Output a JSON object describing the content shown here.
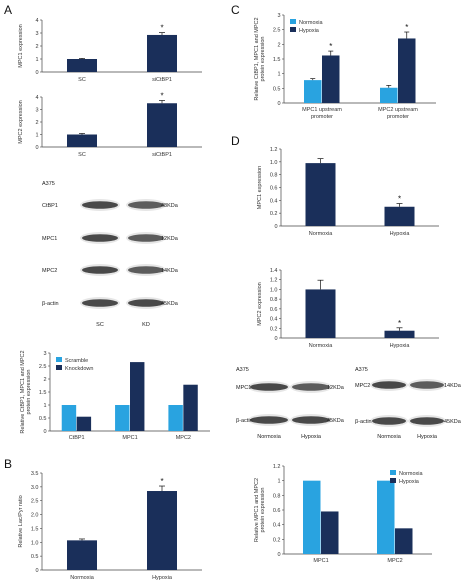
{
  "panels": {
    "A": "A",
    "B": "B",
    "C": "C",
    "D": "D"
  },
  "chart_data": [
    {
      "id": "A1",
      "type": "bar",
      "categories": [
        "SC",
        "siCtBP1"
      ],
      "values": [
        1.0,
        2.85
      ],
      "errors": [
        0.05,
        0.18
      ],
      "significance": [
        "",
        "*"
      ],
      "ylabel": "MPC1 expression",
      "ylim": [
        0,
        4
      ],
      "yticks": [
        "0",
        "1",
        "2",
        "3",
        "4"
      ],
      "color": "#1a2f5a",
      "grid": false
    },
    {
      "id": "A2",
      "type": "bar",
      "categories": [
        "SC",
        "siCtBP1"
      ],
      "values": [
        1.0,
        3.5
      ],
      "errors": [
        0.08,
        0.22
      ],
      "significance": [
        "",
        "*"
      ],
      "ylabel": "MPC2 expression",
      "ylim": [
        0,
        4
      ],
      "yticks": [
        "0",
        "1",
        "2",
        "3",
        "4"
      ],
      "color": "#1a2f5a",
      "grid": false
    },
    {
      "id": "A3",
      "type": "bar",
      "categories": [
        "CtBP1",
        "MPC1",
        "MPC2"
      ],
      "series": [
        {
          "name": "Scramble",
          "values": [
            1.0,
            1.0,
            1.0
          ],
          "color": "#29a3e0"
        },
        {
          "name": "Knockdown",
          "values": [
            0.55,
            2.65,
            1.78
          ],
          "color": "#1a2f5a"
        }
      ],
      "ylabel": "Relative CtBP1, MPC1 and MPC2 protein expression",
      "ylim": [
        0,
        3
      ],
      "yticks": [
        "0",
        "0.5",
        "1",
        "1.5",
        "2",
        "2.5",
        "3"
      ],
      "legend": "top-left",
      "grid": false
    },
    {
      "id": "B",
      "type": "bar",
      "categories": [
        "Normoxia",
        "Hypoxia"
      ],
      "values": [
        1.07,
        2.85
      ],
      "errors": [
        0.05,
        0.18
      ],
      "significance": [
        "",
        "*"
      ],
      "ylabel": "Relative Lac/Pyr ratio",
      "ylim": [
        0,
        3.5
      ],
      "yticks": [
        "0",
        "0.5",
        "1.0",
        "1.5",
        "2.0",
        "2.5",
        "3.0",
        "3.5"
      ],
      "color": "#1a2f5a",
      "grid": false
    },
    {
      "id": "C",
      "type": "bar",
      "categories": [
        "MPC1 upstream promoter",
        "MPC2 upstream promoter"
      ],
      "series": [
        {
          "name": "Normoxia",
          "values": [
            0.78,
            0.52
          ],
          "errors": [
            0.05,
            0.08
          ],
          "color": "#29a3e0"
        },
        {
          "name": "Hypoxia",
          "values": [
            1.62,
            2.2
          ],
          "errors": [
            0.15,
            0.22
          ],
          "color": "#1a2f5a"
        }
      ],
      "significance": [
        "*",
        "*"
      ],
      "ylabel": "Relative CtBP1, MPC1 and MPC2 protein expression",
      "ylim": [
        0,
        3
      ],
      "yticks": [
        "0",
        "0.5",
        "1",
        "1.5",
        "2",
        "2.5",
        "3"
      ],
      "legend": "top-left",
      "grid": false
    },
    {
      "id": "D1",
      "type": "bar",
      "categories": [
        "Normoxia",
        "Hypoxia"
      ],
      "values": [
        0.98,
        0.3
      ],
      "errors": [
        0.07,
        0.05
      ],
      "significance": [
        "",
        "*"
      ],
      "ylabel": "MPC1 expression",
      "ylim": [
        0,
        1.2
      ],
      "yticks": [
        "0",
        "0.2",
        "0.4",
        "0.6",
        "0.8",
        "1.0",
        "1.2"
      ],
      "color": "#1a2f5a",
      "grid": false
    },
    {
      "id": "D2",
      "type": "bar",
      "categories": [
        "Normoxia",
        "Hypoxia"
      ],
      "values": [
        1.0,
        0.15
      ],
      "errors": [
        0.19,
        0.06
      ],
      "significance": [
        "",
        "*"
      ],
      "ylabel": "MPC2 expression",
      "ylim": [
        0,
        1.4
      ],
      "yticks": [
        "0",
        "0.2",
        "0.4",
        "0.6",
        "0.8",
        "1.0",
        "1.2",
        "1.4"
      ],
      "color": "#1a2f5a",
      "grid": false
    },
    {
      "id": "D3",
      "type": "bar",
      "categories": [
        "MPC1",
        "MPC2"
      ],
      "series": [
        {
          "name": "Normoxia",
          "values": [
            1.0,
            1.0
          ],
          "color": "#29a3e0"
        },
        {
          "name": "Hypoxia",
          "values": [
            0.58,
            0.35
          ],
          "color": "#1a2f5a"
        }
      ],
      "ylabel": "Relative MPC1 and MPC2 protein expression",
      "ylim": [
        0,
        1.2
      ],
      "yticks": [
        "0",
        "0.2",
        "0.4",
        "0.6",
        "0.8",
        "1",
        "1.2"
      ],
      "legend": "top-right",
      "grid": false
    }
  ],
  "blots": {
    "A": {
      "cell": "A375",
      "rows": [
        {
          "label": "CtBP1",
          "size": "48KDa"
        },
        {
          "label": "MPC1",
          "size": "12KDa"
        },
        {
          "label": "MPC2",
          "size": "14KDa"
        },
        {
          "label": "β-actin",
          "size": "45KDa"
        }
      ],
      "lanes": [
        "SC",
        "KD"
      ]
    },
    "D1": {
      "cell": "A375",
      "rows": [
        {
          "label": "MPC1",
          "size": "12KDa"
        },
        {
          "label": "β-actin",
          "size": "45KDa"
        }
      ],
      "lanes": [
        "Normoxia",
        "Hypoxia"
      ]
    },
    "D2": {
      "cell": "A375",
      "rows": [
        {
          "label": "MPC2",
          "size": "14KDa"
        },
        {
          "label": "β-actin",
          "size": "45KDa"
        }
      ],
      "lanes": [
        "Normoxia",
        "Hypoxia"
      ]
    }
  }
}
